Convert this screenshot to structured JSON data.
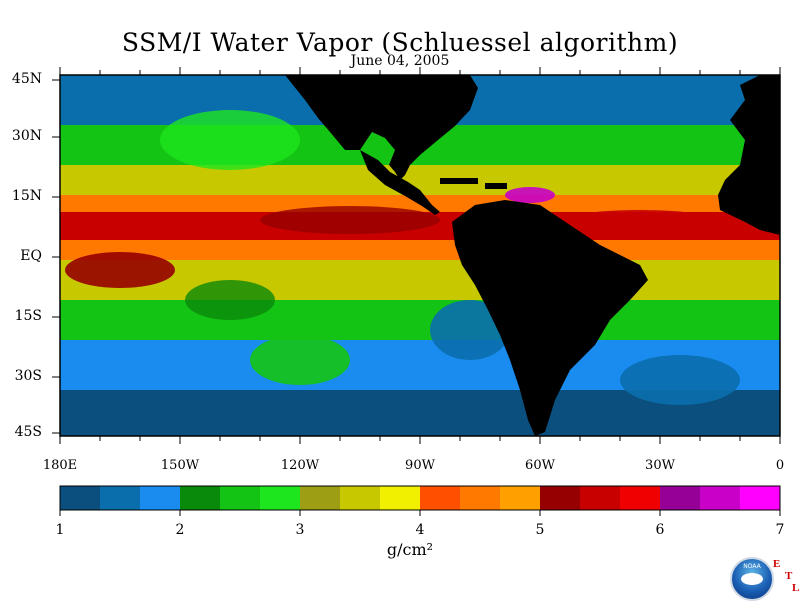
{
  "title": "SSM/I Water Vapor (Schluessel algorithm)",
  "date": "June 04, 2005",
  "colors": {
    "land": "#000000",
    "legend_bins": [
      "#0a4f7d",
      "#0a6ead",
      "#1a8cf0",
      "#0a8a0a",
      "#14c414",
      "#1ee61e",
      "#9e9e14",
      "#c8c800",
      "#f0f000",
      "#ff5000",
      "#ff7800",
      "#ffa000",
      "#960000",
      "#c80000",
      "#f00000",
      "#960096",
      "#c800c8",
      "#ff00ff"
    ]
  },
  "map": {
    "lat_labels": [
      "45N",
      "30N",
      "15N",
      "EQ",
      "15S",
      "30S",
      "45S"
    ],
    "lon_labels": [
      "180E",
      "150W",
      "120W",
      "90W",
      "60W",
      "30W",
      "0"
    ]
  },
  "colorbar": {
    "ticks": [
      "1",
      "2",
      "3",
      "4",
      "5",
      "6",
      "7"
    ],
    "unit": "g/cm²"
  },
  "logo": {
    "name": "NOAA",
    "letters": [
      "E",
      "T",
      "L"
    ]
  }
}
